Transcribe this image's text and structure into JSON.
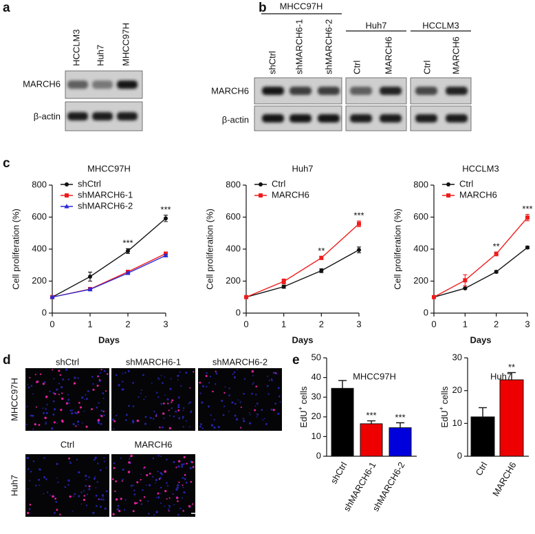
{
  "panel_labels": [
    "a",
    "b",
    "c",
    "d",
    "e"
  ],
  "blot_a": {
    "lanes": [
      "HCCLM3",
      "Huh7",
      "MHCC97H"
    ],
    "rows": [
      "MARCH6",
      "β-actin"
    ]
  },
  "blot_b": {
    "groups": [
      {
        "name": "MHCC97H",
        "lanes": [
          "shCtrl",
          "shMARCH6-1",
          "shMARCH6-2"
        ]
      },
      {
        "name": "Huh7",
        "lanes": [
          "Ctrl",
          "MARCH6"
        ]
      },
      {
        "name": "HCCLM3",
        "lanes": [
          "Ctrl",
          "MARCH6"
        ]
      }
    ],
    "rows": [
      "MARCH6",
      "β-actin"
    ]
  },
  "images_d": {
    "rows": [
      {
        "name": "MHCC97H",
        "columns": [
          "shCtrl",
          "shMARCH6-1",
          "shMARCH6-2"
        ]
      },
      {
        "name": "Huh7",
        "columns": [
          "Ctrl",
          "MARCH6"
        ]
      }
    ]
  },
  "chart_data": [
    {
      "type": "line",
      "title": "MHCC97H",
      "xlabel": "Days",
      "ylabel": "Cell proliferation (%)",
      "x": [
        0,
        1,
        2,
        3
      ],
      "xlim": [
        0,
        3
      ],
      "xticks": [
        0,
        1,
        2,
        3
      ],
      "ylim": [
        0,
        800
      ],
      "yticks": [
        0,
        200,
        400,
        600,
        800
      ],
      "series": [
        {
          "name": "shCtrl",
          "color": "#111111",
          "marker": "circle",
          "values": [
            100,
            228,
            388,
            592
          ],
          "errors": [
            5,
            28,
            15,
            20
          ]
        },
        {
          "name": "shMARCH6-1",
          "color": "#ee1c1c",
          "marker": "square",
          "values": [
            100,
            150,
            258,
            372
          ],
          "errors": [
            3,
            10,
            10,
            10
          ]
        },
        {
          "name": "shMARCH6-2",
          "color": "#2a2ad8",
          "marker": "triangle",
          "values": [
            100,
            148,
            250,
            360
          ],
          "errors": [
            3,
            8,
            8,
            8
          ]
        }
      ],
      "annotations": [
        {
          "x": 2,
          "text": "***"
        },
        {
          "x": 3,
          "text": "***"
        }
      ]
    },
    {
      "type": "line",
      "title": "Huh7",
      "xlabel": "Days",
      "ylabel": "Cell proliferation (%)",
      "x": [
        0,
        1,
        2,
        3
      ],
      "xlim": [
        0,
        3
      ],
      "xticks": [
        0,
        1,
        2,
        3
      ],
      "ylim": [
        0,
        800
      ],
      "yticks": [
        0,
        200,
        400,
        600,
        800
      ],
      "series": [
        {
          "name": "Ctrl",
          "color": "#111111",
          "marker": "circle",
          "values": [
            100,
            165,
            265,
            395
          ],
          "errors": [
            3,
            10,
            12,
            18
          ]
        },
        {
          "name": "MARCH6",
          "color": "#ee1c1c",
          "marker": "square",
          "values": [
            100,
            198,
            345,
            558
          ],
          "errors": [
            3,
            15,
            10,
            18
          ]
        }
      ],
      "annotations": [
        {
          "x": 2,
          "text": "**"
        },
        {
          "x": 3,
          "text": "***"
        }
      ]
    },
    {
      "type": "line",
      "title": "HCCLM3",
      "xlabel": "Days",
      "ylabel": "Cell proliferation (%)",
      "x": [
        0,
        1,
        2,
        3
      ],
      "xlim": [
        0,
        3
      ],
      "xticks": [
        0,
        1,
        2,
        3
      ],
      "ylim": [
        0,
        800
      ],
      "yticks": [
        0,
        200,
        400,
        600,
        800
      ],
      "series": [
        {
          "name": "Ctrl",
          "color": "#111111",
          "marker": "circle",
          "values": [
            100,
            155,
            258,
            410
          ],
          "errors": [
            3,
            5,
            8,
            8
          ]
        },
        {
          "name": "MARCH6",
          "color": "#ee1c1c",
          "marker": "square",
          "values": [
            100,
            205,
            370,
            597
          ],
          "errors": [
            3,
            35,
            12,
            20
          ]
        }
      ],
      "annotations": [
        {
          "x": 2,
          "text": "**"
        },
        {
          "x": 3,
          "text": "***"
        }
      ]
    },
    {
      "type": "bar",
      "title": "MHCC97H",
      "ylabel": [
        "EdU",
        "+",
        " cells"
      ],
      "categories": [
        "shCtrl",
        "shMARCH6-1",
        "shMARCH6-2"
      ],
      "values": [
        34.5,
        16.5,
        14.5
      ],
      "errors": [
        4,
        1.5,
        2.5
      ],
      "colors": [
        "#000000",
        "#ee0000",
        "#0000dd"
      ],
      "annotations": [
        null,
        "***",
        "***"
      ],
      "ylim": [
        0,
        50
      ],
      "yticks": [
        0,
        10,
        20,
        30,
        40,
        50
      ]
    },
    {
      "type": "bar",
      "title": "Huh7",
      "ylabel": [
        "EdU",
        "+",
        " cells"
      ],
      "categories": [
        "Ctrl",
        "MARCH6"
      ],
      "values": [
        12,
        23.3
      ],
      "errors": [
        2.8,
        2.2
      ],
      "colors": [
        "#000000",
        "#ee0000"
      ],
      "annotations": [
        null,
        "**"
      ],
      "ylim": [
        0,
        30
      ],
      "yticks": [
        0,
        10,
        20,
        30
      ]
    }
  ]
}
